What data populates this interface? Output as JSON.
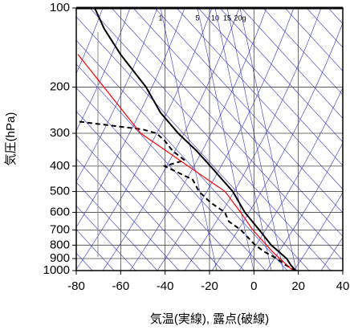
{
  "chart_data": {
    "type": "skewt",
    "xlabel": "気温(実線), 露点(破線)",
    "ylabel": "気圧(hPa)",
    "mixing_ratio_labels": [
      "1",
      "5",
      "10",
      "15",
      "20g"
    ],
    "xlim": [
      -80,
      40
    ],
    "xticks": [
      -80,
      -60,
      -40,
      -20,
      0,
      20,
      40
    ],
    "ylim": [
      1000,
      100
    ],
    "yticks": [
      100,
      200,
      300,
      400,
      500,
      600,
      700,
      800,
      900,
      1000
    ],
    "log_y": true,
    "grid": true,
    "series": [
      {
        "color": "#000000",
        "dash": false,
        "x": [
          18.7,
          16.5,
          14.7,
          11.4,
          7.8,
          2.4,
          -4.1,
          -9.5,
          -19.6,
          -25.8,
          -34.1,
          -42.1,
          -48.6,
          -60.1,
          -67.4,
          -71.7
        ],
        "values": [
          1000,
          950,
          900,
          850,
          800,
          700,
          600,
          500,
          400,
          350,
          300,
          250,
          200,
          150,
          120,
          100
        ]
      },
      {
        "color": "#000000",
        "dash": true,
        "x": [
          19,
          14,
          10.4,
          4.9,
          0.6,
          -5.9,
          -11.3,
          -13.1,
          -19.6,
          -24.7,
          -27.6,
          -40.2,
          -31.2,
          -36.6,
          -40.2,
          -43.9,
          -50,
          -80
        ],
        "values": [
          1000,
          950,
          900,
          850,
          800,
          700,
          650,
          600,
          550,
          500,
          450,
          400,
          380,
          350,
          320,
          300,
          290,
          270
        ]
      },
      {
        "color": "#ff0000",
        "dash": false,
        "x": [
          17.6,
          8.5,
          -0.5,
          -6,
          -13,
          -51,
          -79.3
        ],
        "values": [
          1000,
          850,
          700,
          600,
          500,
          300,
          150
        ]
      }
    ]
  }
}
